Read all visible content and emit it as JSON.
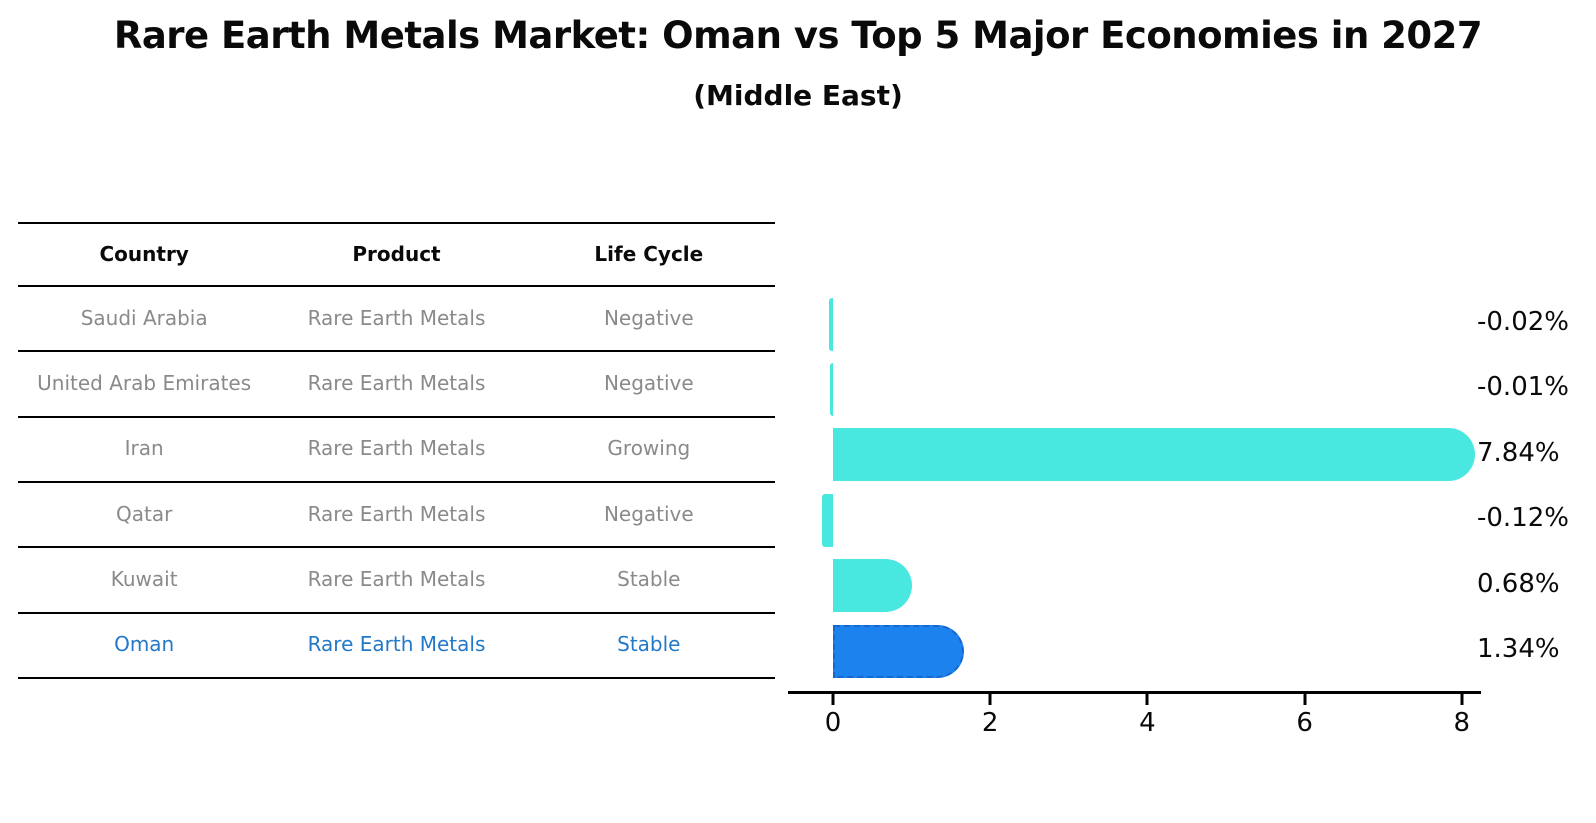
{
  "title": "Rare Earth Metals Market: Oman vs Top 5 Major Economies in 2027",
  "subtitle": "(Middle East)",
  "table": {
    "headers": [
      "Country",
      "Product",
      "Life Cycle"
    ],
    "rows": [
      {
        "country": "Saudi Arabia",
        "product": "Rare Earth Metals",
        "life_cycle": "Negative",
        "highlight": false
      },
      {
        "country": "United Arab Emirates",
        "product": "Rare Earth Metals",
        "life_cycle": "Negative",
        "highlight": false
      },
      {
        "country": "Iran",
        "product": "Rare Earth Metals",
        "life_cycle": "Growing",
        "highlight": false
      },
      {
        "country": "Qatar",
        "product": "Rare Earth Metals",
        "life_cycle": "Negative",
        "highlight": false
      },
      {
        "country": "Kuwait",
        "product": "Rare Earth Metals",
        "life_cycle": "Stable",
        "highlight": false
      },
      {
        "country": "Oman",
        "product": "Rare Earth Metals",
        "life_cycle": "Stable",
        "highlight": true
      }
    ]
  },
  "chart_data": {
    "type": "bar",
    "orientation": "horizontal",
    "title": "Rare Earth Metals Market: Oman vs Top 5 Major Economies in 2027 (Middle East)",
    "categories": [
      "Saudi Arabia",
      "United Arab Emirates",
      "Iran",
      "Qatar",
      "Kuwait",
      "Oman"
    ],
    "values": [
      -0.02,
      -0.01,
      7.84,
      -0.12,
      0.68,
      1.34
    ],
    "value_labels": [
      "-0.02%",
      "-0.01%",
      "7.84%",
      "-0.12%",
      "0.68%",
      "1.34%"
    ],
    "unit": "percent",
    "xlabel": "",
    "ylabel": "",
    "xticks": [
      0,
      2,
      4,
      6,
      8
    ],
    "xlim": [
      -0.57,
      8.24
    ],
    "grid": false,
    "legend": false,
    "highlight_index": 5,
    "colors": {
      "bar_default": "#48e8e0",
      "bar_highlight": "#1b82ee",
      "bar_highlight_border": "#1668cc",
      "table_text": "#8a8a8a",
      "table_highlight_text": "#2379c8",
      "axis": "#000000",
      "label_text": "#0a0a0a"
    }
  }
}
